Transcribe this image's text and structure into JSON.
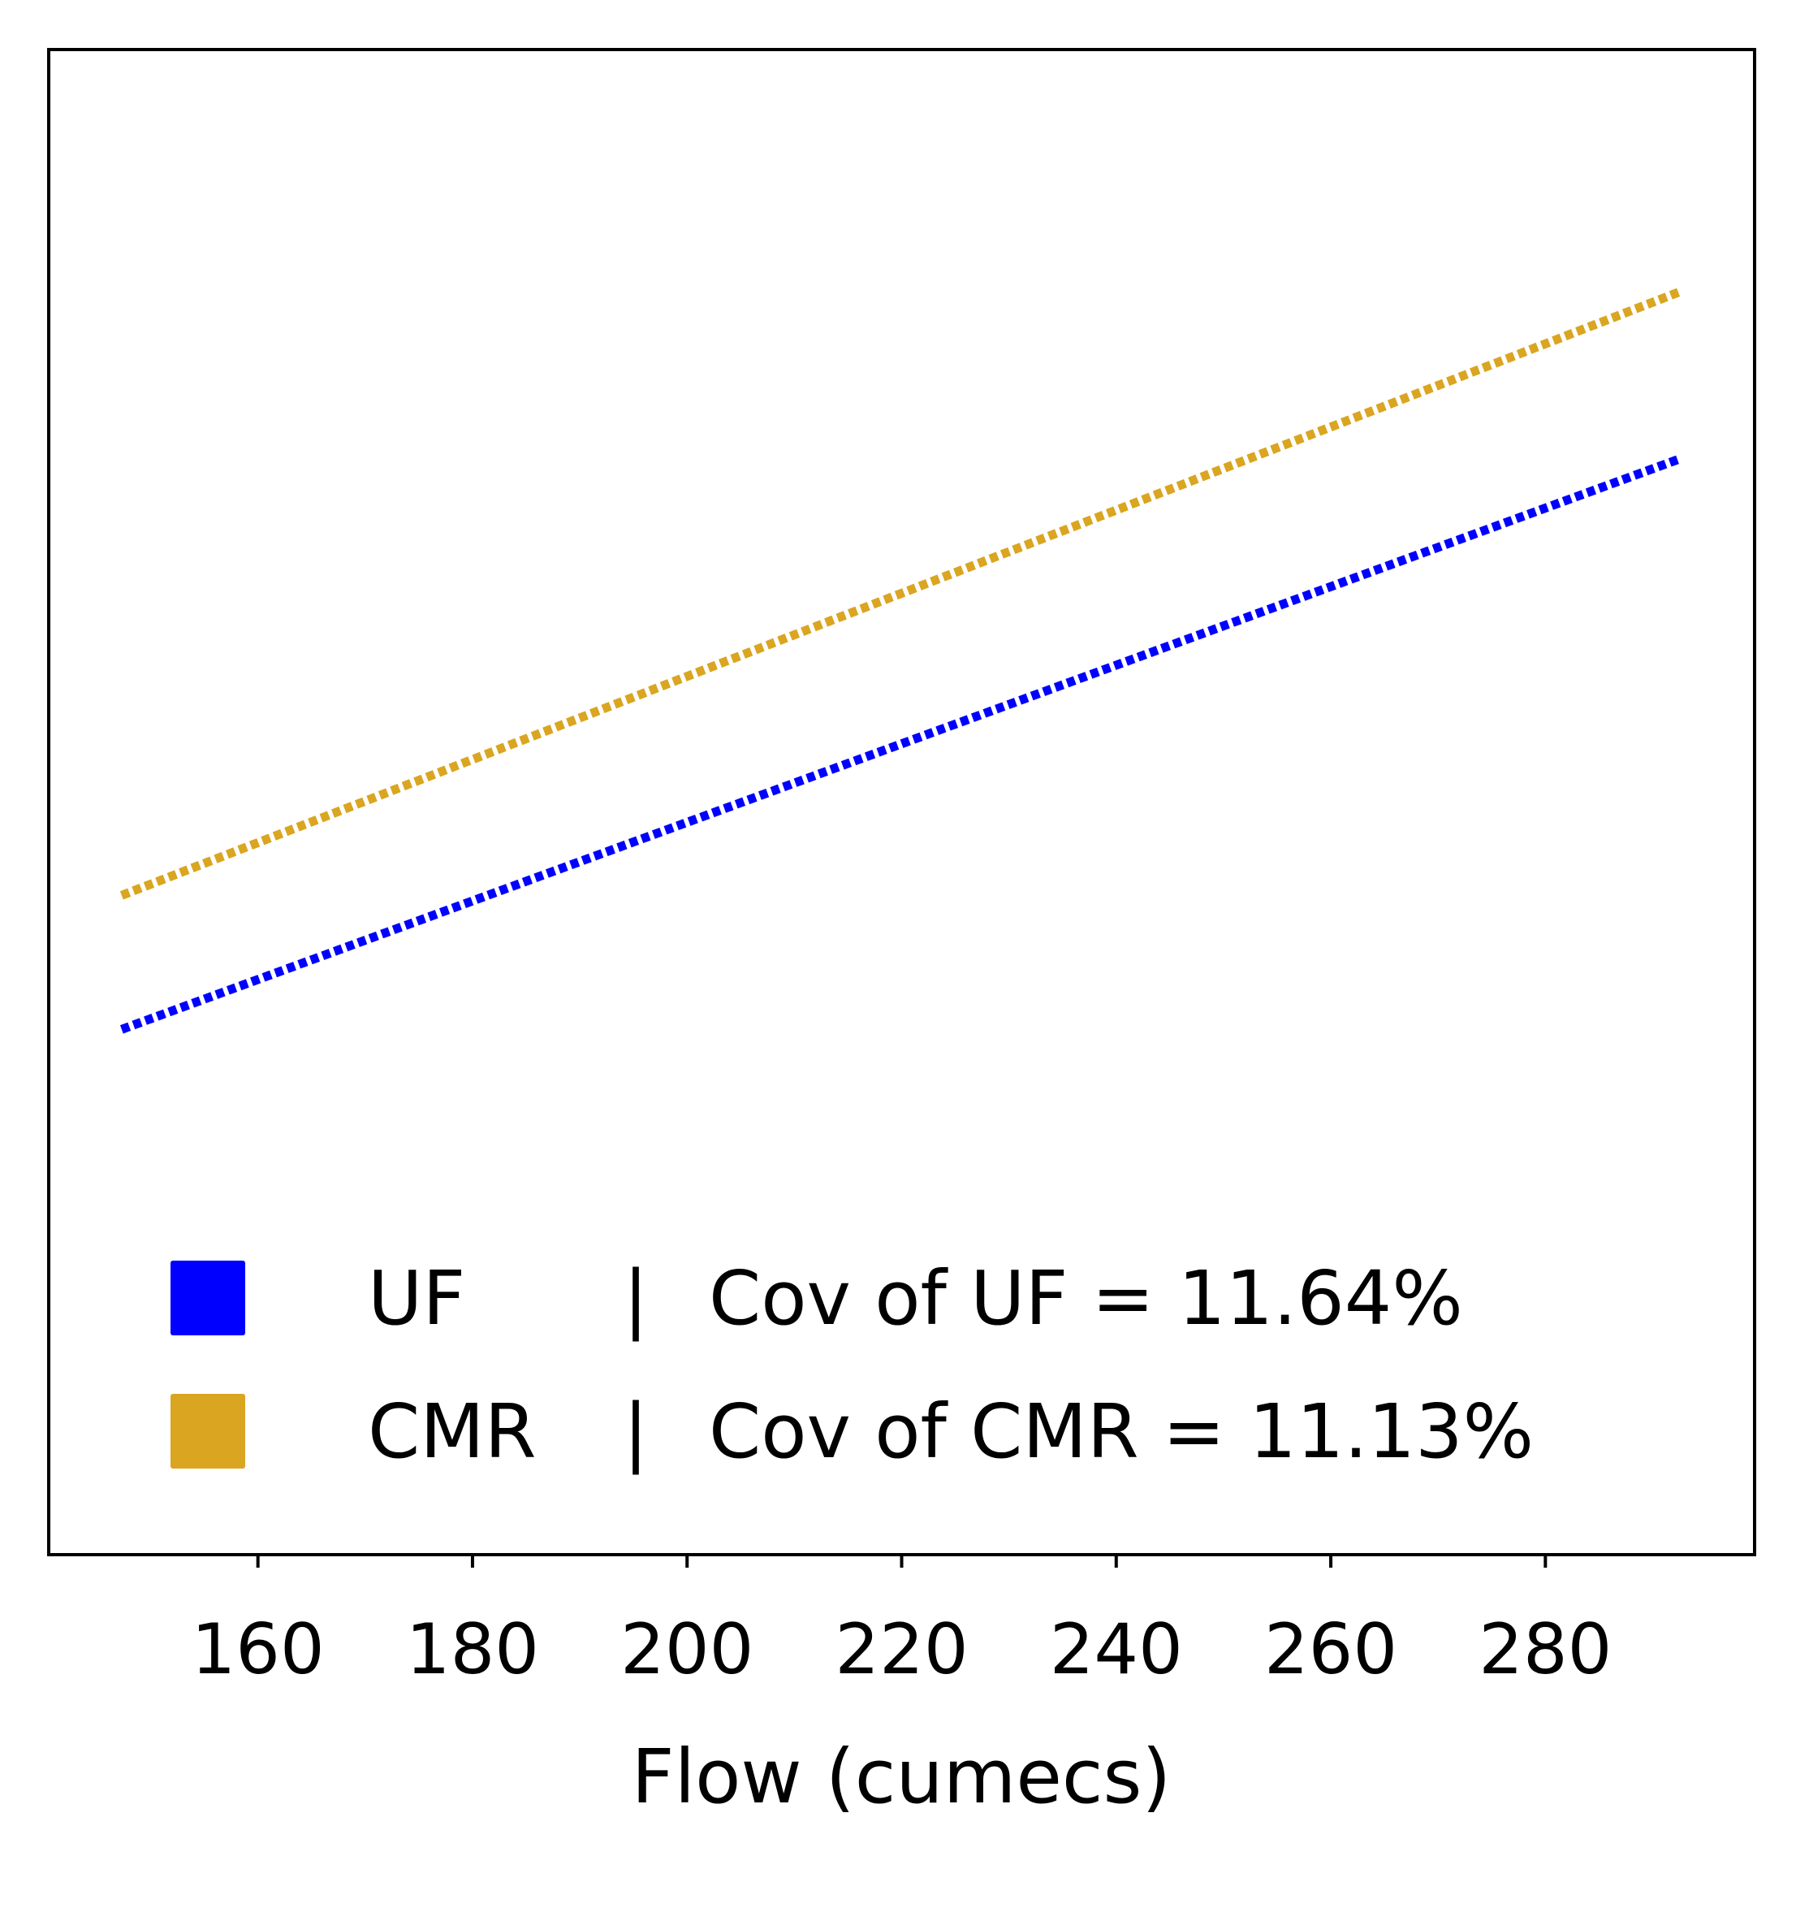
{
  "chart_data": {
    "type": "line",
    "title": "",
    "xlabel": "Flow (cumecs)",
    "ylabel": "",
    "xlim": [
      140.5,
      299.5
    ],
    "ylim": [
      0.0,
      1.0
    ],
    "xticks": [
      160,
      180,
      200,
      220,
      240,
      260,
      280
    ],
    "yticks_visible": false,
    "grid": false,
    "legend_position": "lower-left",
    "series": [
      {
        "name": "UF",
        "legend_label": "UF",
        "legend_separator": "|",
        "legend_note": "Cov of UF = 11.64%",
        "color": "#0000ff",
        "line_style": "dotted",
        "x_start": 147.3,
        "x_end": 292.5,
        "y_start": 0.349,
        "y_end": 0.728
      },
      {
        "name": "CMR",
        "legend_label": "CMR",
        "legend_separator": "|",
        "legend_note": "Cov of CMR = 11.13%",
        "color": "#daa520",
        "line_style": "dotted",
        "x_start": 147.3,
        "x_end": 292.5,
        "y_start": 0.438,
        "y_end": 0.839
      }
    ]
  }
}
